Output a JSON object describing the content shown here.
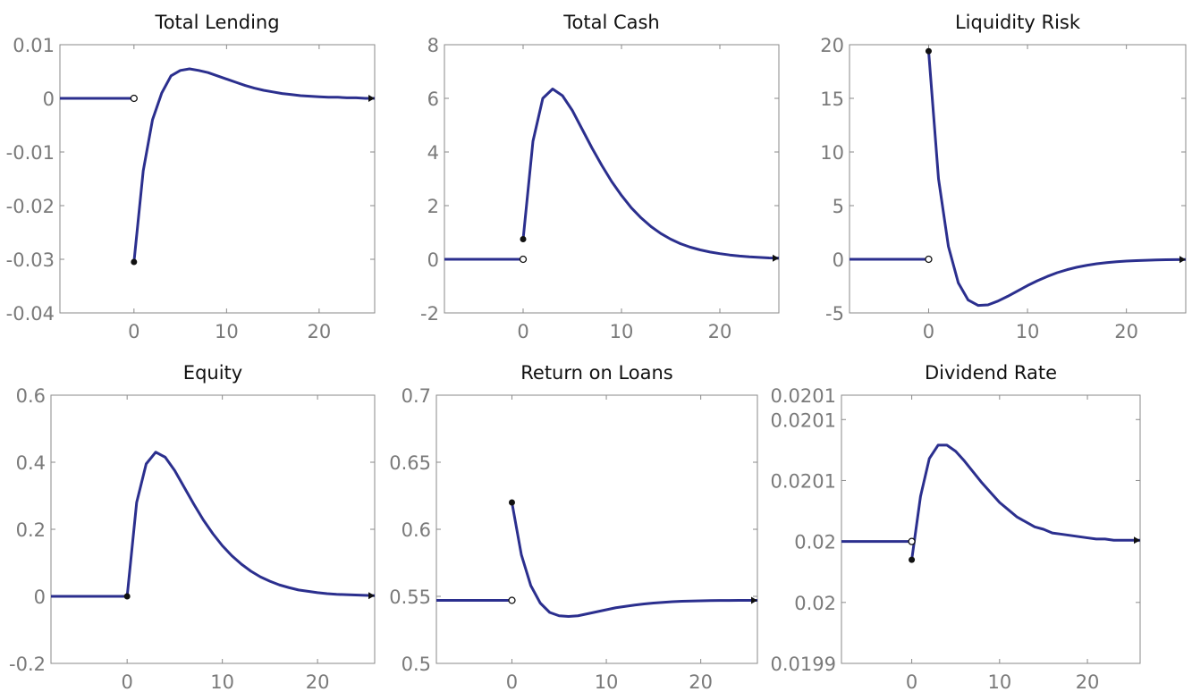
{
  "colors": {
    "line": "#2B2F8E",
    "frame": "#8a8a8a",
    "tick_text": "#7a7a7a",
    "marker": "#111111",
    "title": "#111111"
  },
  "chart_data": [
    {
      "type": "line",
      "title": "Total Lending",
      "xlim": [
        -8,
        26
      ],
      "ylim": [
        -0.04,
        0.01
      ],
      "xticks": [
        0,
        10,
        20
      ],
      "xtick_labels": [
        "0",
        "10",
        "20"
      ],
      "yticks": [
        -0.04,
        -0.03,
        -0.02,
        -0.01,
        0,
        0.01
      ],
      "ytick_labels": [
        "-0.04",
        "-0.03",
        "-0.02",
        "-0.01",
        "0",
        "0.01"
      ],
      "pre": {
        "x": [
          -8,
          0
        ],
        "y": [
          0,
          0
        ]
      },
      "open_point": [
        0,
        0
      ],
      "closed_point": [
        0,
        -0.0305
      ],
      "series": [
        {
          "x": [
            0,
            1,
            2,
            3,
            4,
            5,
            6,
            7,
            8,
            9,
            10,
            11,
            12,
            13,
            14,
            15,
            16,
            17,
            18,
            19,
            20,
            21,
            22,
            23,
            24,
            25,
            26
          ],
          "y": [
            -0.0305,
            -0.0135,
            -0.004,
            0.001,
            0.0042,
            0.0052,
            0.0055,
            0.0052,
            0.0048,
            0.0042,
            0.0036,
            0.003,
            0.0024,
            0.0019,
            0.0015,
            0.0012,
            0.0009,
            0.0007,
            0.0005,
            0.0004,
            0.0003,
            0.0002,
            0.0002,
            0.0001,
            0.0001,
            0.0,
            0.0
          ]
        }
      ]
    },
    {
      "type": "line",
      "title": "Total Cash",
      "xlim": [
        -8,
        26
      ],
      "ylim": [
        -2,
        8
      ],
      "xticks": [
        0,
        10,
        20
      ],
      "xtick_labels": [
        "0",
        "10",
        "20"
      ],
      "yticks": [
        -2,
        0,
        2,
        4,
        6,
        8
      ],
      "ytick_labels": [
        "-2",
        "0",
        "2",
        "4",
        "6",
        "8"
      ],
      "pre": {
        "x": [
          -8,
          0
        ],
        "y": [
          0,
          0
        ]
      },
      "open_point": [
        0,
        0
      ],
      "closed_point": [
        0,
        0.75
      ],
      "series": [
        {
          "x": [
            0,
            1,
            2,
            3,
            4,
            5,
            6,
            7,
            8,
            9,
            10,
            11,
            12,
            13,
            14,
            15,
            16,
            17,
            18,
            19,
            20,
            21,
            22,
            23,
            24,
            25,
            26
          ],
          "y": [
            0.75,
            4.4,
            6.0,
            6.35,
            6.1,
            5.55,
            4.85,
            4.15,
            3.5,
            2.9,
            2.38,
            1.92,
            1.54,
            1.22,
            0.96,
            0.75,
            0.58,
            0.45,
            0.35,
            0.27,
            0.21,
            0.16,
            0.12,
            0.09,
            0.07,
            0.05,
            0.04
          ]
        }
      ]
    },
    {
      "type": "line",
      "title": "Liquidity Risk",
      "xlim": [
        -8,
        26
      ],
      "ylim": [
        -5,
        20
      ],
      "xticks": [
        0,
        10,
        20
      ],
      "xtick_labels": [
        "0",
        "10",
        "20"
      ],
      "yticks": [
        -5,
        0,
        5,
        10,
        15,
        20
      ],
      "ytick_labels": [
        "-5",
        "0",
        "5",
        "10",
        "15",
        "20"
      ],
      "pre": {
        "x": [
          -8,
          0
        ],
        "y": [
          0,
          0
        ]
      },
      "open_point": [
        0,
        0
      ],
      "closed_point": [
        0,
        19.4
      ],
      "series": [
        {
          "x": [
            0,
            1,
            2,
            3,
            4,
            5,
            6,
            7,
            8,
            9,
            10,
            11,
            12,
            13,
            14,
            15,
            16,
            17,
            18,
            19,
            20,
            21,
            22,
            23,
            24,
            25,
            26
          ],
          "y": [
            19.4,
            7.5,
            1.2,
            -2.2,
            -3.8,
            -4.3,
            -4.25,
            -3.9,
            -3.45,
            -2.95,
            -2.45,
            -2.0,
            -1.6,
            -1.25,
            -0.97,
            -0.74,
            -0.56,
            -0.42,
            -0.31,
            -0.23,
            -0.17,
            -0.12,
            -0.09,
            -0.06,
            -0.04,
            -0.03,
            -0.02
          ]
        }
      ]
    },
    {
      "type": "line",
      "title": "Equity",
      "xlim": [
        -8,
        26
      ],
      "ylim": [
        -0.2,
        0.6
      ],
      "xticks": [
        0,
        10,
        20
      ],
      "xtick_labels": [
        "0",
        "10",
        "20"
      ],
      "yticks": [
        -0.2,
        0,
        0.2,
        0.4,
        0.6
      ],
      "ytick_labels": [
        "-0.2",
        "0",
        "0.2",
        "0.4",
        "0.6"
      ],
      "pre": {
        "x": [
          -8,
          0
        ],
        "y": [
          0,
          0
        ]
      },
      "open_point": null,
      "closed_point": [
        0,
        0
      ],
      "series": [
        {
          "x": [
            0,
            1,
            2,
            3,
            4,
            5,
            6,
            7,
            8,
            9,
            10,
            11,
            12,
            13,
            14,
            15,
            16,
            17,
            18,
            19,
            20,
            21,
            22,
            23,
            24,
            25,
            26
          ],
          "y": [
            0.0,
            0.28,
            0.395,
            0.43,
            0.415,
            0.375,
            0.325,
            0.275,
            0.228,
            0.187,
            0.151,
            0.121,
            0.096,
            0.075,
            0.058,
            0.045,
            0.034,
            0.026,
            0.019,
            0.015,
            0.011,
            0.008,
            0.006,
            0.005,
            0.004,
            0.003,
            0.002
          ]
        }
      ]
    },
    {
      "type": "line",
      "title": "Return on Loans",
      "xlim": [
        -8,
        26
      ],
      "ylim": [
        0.5,
        0.7
      ],
      "xticks": [
        0,
        10,
        20
      ],
      "xtick_labels": [
        "0",
        "10",
        "20"
      ],
      "yticks": [
        0.5,
        0.55,
        0.6,
        0.65,
        0.7
      ],
      "ytick_labels": [
        "0.5",
        "0.55",
        "0.6",
        "0.65",
        "0.7"
      ],
      "pre": {
        "x": [
          -8,
          0
        ],
        "y": [
          0.547,
          0.547
        ]
      },
      "open_point": [
        0,
        0.547
      ],
      "closed_point": [
        0,
        0.62
      ],
      "series": [
        {
          "x": [
            0,
            1,
            2,
            3,
            4,
            5,
            6,
            7,
            8,
            9,
            10,
            11,
            12,
            13,
            14,
            15,
            16,
            17,
            18,
            19,
            20,
            21,
            22,
            23,
            24,
            25,
            26
          ],
          "y": [
            0.62,
            0.581,
            0.558,
            0.545,
            0.538,
            0.5355,
            0.535,
            0.5355,
            0.537,
            0.5385,
            0.54,
            0.5415,
            0.5425,
            0.5435,
            0.5443,
            0.545,
            0.5455,
            0.546,
            0.5463,
            0.5465,
            0.5467,
            0.5468,
            0.5469,
            0.5469,
            0.547,
            0.547,
            0.547
          ]
        }
      ]
    },
    {
      "type": "line",
      "title": "Dividend Rate",
      "xlim": [
        -8,
        26
      ],
      "ylim": [
        0.0199,
        0.02012
      ],
      "xticks": [
        0,
        10,
        20
      ],
      "xtick_labels": [
        "0",
        "10",
        "20"
      ],
      "yticks": [
        0.0199,
        0.01995,
        0.02,
        0.02005,
        0.0201,
        0.02012
      ],
      "ytick_labels": [
        "0.0199",
        "0.02",
        "0.02",
        "0.0201",
        "0.0201",
        "0.0201"
      ],
      "pre": {
        "x": [
          -8,
          0
        ],
        "y": [
          0.02,
          0.02
        ]
      },
      "open_point": [
        0,
        0.02
      ],
      "closed_point": [
        0,
        0.019985
      ],
      "series": [
        {
          "x": [
            0,
            1,
            2,
            3,
            4,
            5,
            6,
            7,
            8,
            9,
            10,
            11,
            12,
            13,
            14,
            15,
            16,
            17,
            18,
            19,
            20,
            21,
            22,
            23,
            24,
            25,
            26
          ],
          "y": [
            0.019985,
            0.020037,
            0.020068,
            0.020079,
            0.020079,
            0.020074,
            0.020066,
            0.020057,
            0.020048,
            0.02004,
            0.020032,
            0.020026,
            0.02002,
            0.020016,
            0.020012,
            0.02001,
            0.020007,
            0.020006,
            0.020005,
            0.020004,
            0.020003,
            0.020002,
            0.020002,
            0.020001,
            0.020001,
            0.020001,
            0.020001
          ]
        }
      ]
    }
  ]
}
